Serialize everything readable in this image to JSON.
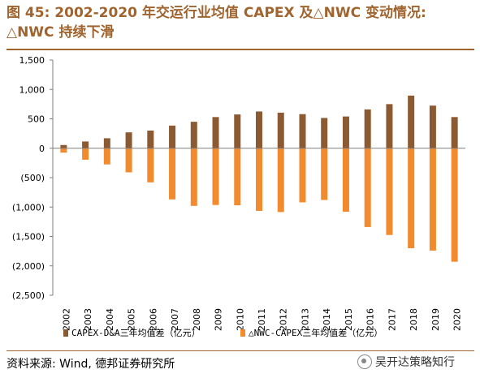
{
  "title": {
    "line1": "图 45: 2002-2020 年交运行业均值 CAPEX 及△NWC 变动情况:",
    "line2": "△NWC 持续下滑"
  },
  "source": "资料来源: Wind, 德邦证券研究所",
  "watermark": "吴开达策略知行",
  "colors": {
    "capex": "#8c5a32",
    "nwc": "#f28a2e",
    "title": "#a0642f"
  },
  "chart_data": {
    "type": "bar",
    "categories": [
      "2002",
      "2003",
      "2004",
      "2005",
      "2006",
      "2007",
      "2008",
      "2009",
      "2010",
      "2011",
      "2012",
      "2013",
      "2014",
      "2015",
      "2016",
      "2017",
      "2018",
      "2019",
      "2020"
    ],
    "series": [
      {
        "name": "CAPEX-D&A三年均值差（亿元）",
        "values": [
          55,
          115,
          170,
          270,
          300,
          385,
          450,
          530,
          575,
          625,
          605,
          580,
          515,
          540,
          660,
          750,
          895,
          725,
          530
        ]
      },
      {
        "name": "△NWC-CAPEX三年均值差（亿元）",
        "values": [
          -75,
          -195,
          -275,
          -410,
          -580,
          -870,
          -980,
          -965,
          -970,
          -1065,
          -1085,
          -920,
          -880,
          -1080,
          -1340,
          -1475,
          -1700,
          -1740,
          -1930
        ]
      }
    ],
    "ylim": [
      -2500,
      1500
    ],
    "yticks": [
      1500,
      1000,
      500,
      0,
      -500,
      -1000,
      -1500,
      -2000,
      -2500
    ],
    "ytick_labels": [
      "1,500",
      "1,000",
      "500",
      "0",
      "(500)",
      "(1,000)",
      "(1,500)",
      "(2,000)",
      "(2,500)"
    ],
    "legend_position": "bottom",
    "grid": false
  }
}
